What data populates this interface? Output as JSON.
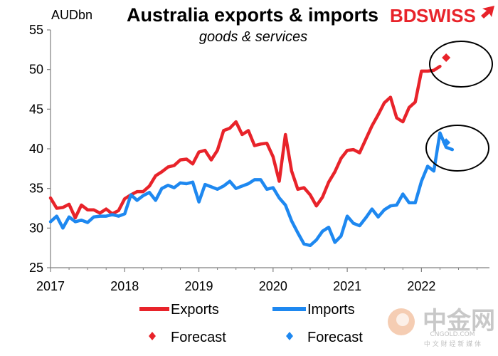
{
  "chart_data": {
    "type": "line",
    "title": "Australia exports & imports",
    "subtitle": "goods & services",
    "ylabel": "AUDbn",
    "ylim": [
      25,
      55
    ],
    "yticks": [
      25,
      30,
      35,
      40,
      45,
      50,
      55
    ],
    "xlim": [
      2017,
      2022.917
    ],
    "xticks": [
      2017,
      2018,
      2019,
      2020,
      2021,
      2022
    ],
    "xtick_labels": [
      "2017",
      "2018",
      "2019",
      "2020",
      "2021",
      "2022"
    ],
    "series": [
      {
        "name": "Exports",
        "color": "#e8232a",
        "start": 2017,
        "step": 0.0833333,
        "values": [
          33.8,
          32.5,
          32.6,
          33.0,
          31.3,
          32.9,
          32.3,
          32.3,
          31.9,
          32.4,
          31.8,
          32.2,
          33.7,
          34.2,
          34.6,
          34.6,
          35.3,
          36.6,
          37.1,
          37.7,
          37.9,
          38.6,
          38.7,
          38.1,
          39.6,
          39.8,
          38.6,
          39.8,
          42.3,
          42.6,
          43.4,
          41.8,
          42.3,
          40.4,
          40.6,
          40.7,
          39.0,
          35.9,
          41.8,
          37.2,
          34.9,
          35.1,
          34.2,
          32.8,
          33.9,
          35.8,
          37.1,
          38.8,
          39.8,
          39.9,
          39.5,
          41.2,
          42.9,
          44.3,
          45.8,
          46.5,
          43.9,
          43.4,
          45.2,
          45.9,
          49.8,
          49.8,
          49.9,
          50.4
        ]
      },
      {
        "name": "Imports",
        "color": "#1e88f0",
        "start": 2017,
        "step": 0.0833333,
        "values": [
          30.8,
          31.5,
          30.0,
          31.4,
          30.8,
          31.0,
          30.7,
          31.4,
          31.5,
          31.5,
          31.7,
          31.5,
          31.8,
          34.2,
          33.5,
          34.1,
          34.5,
          33.5,
          35.0,
          35.4,
          35.1,
          35.7,
          35.6,
          35.8,
          33.3,
          35.5,
          35.2,
          34.9,
          35.3,
          35.9,
          35.0,
          35.3,
          35.6,
          36.1,
          36.1,
          34.9,
          35.1,
          33.8,
          32.9,
          30.9,
          29.4,
          28.0,
          27.8,
          28.5,
          29.6,
          30.1,
          28.2,
          29.0,
          31.5,
          30.6,
          30.3,
          31.3,
          32.4,
          31.4,
          32.3,
          32.8,
          32.9,
          34.3,
          33.2,
          33.2,
          35.9,
          37.8,
          37.2,
          42.0,
          40.2,
          39.9
        ]
      }
    ],
    "forecast": [
      {
        "name": "Exports forecast",
        "x": 2022.3333,
        "y": 51.5,
        "color": "#e8232a"
      },
      {
        "name": "Imports forecast",
        "x": 2022.3333,
        "y": 40.8,
        "color": "#1e88f0"
      }
    ],
    "legend": [
      {
        "label": "Exports",
        "kind": "line",
        "color": "#e8232a"
      },
      {
        "label": "Imports",
        "kind": "line",
        "color": "#1e88f0"
      },
      {
        "label": "Forecast",
        "kind": "marker",
        "color": "#e8232a"
      },
      {
        "label": "Forecast",
        "kind": "marker",
        "color": "#1e88f0"
      }
    ]
  },
  "brand": {
    "name_left": "BD",
    "name_right": "SWISS",
    "accent_color": "#e8232a"
  },
  "watermark": {
    "big": "中金网",
    "small": "中 文 财 经 新 媒 体",
    "url": "CNGOLD.COM"
  }
}
